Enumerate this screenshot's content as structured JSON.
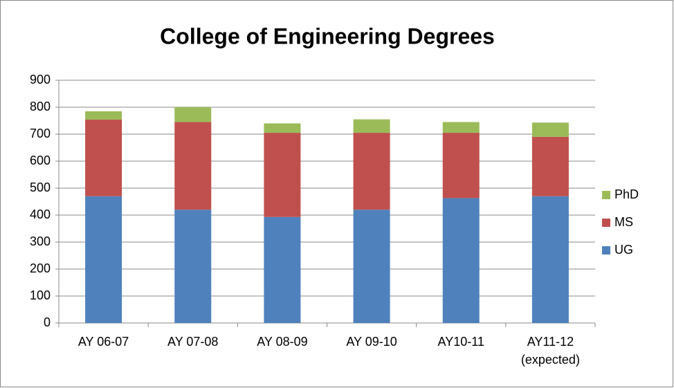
{
  "chart_data": {
    "type": "stacked_bar",
    "title": "College of Engineering Degrees",
    "categories": [
      "AY 06-07",
      "AY 07-08",
      "AY 08-09",
      "AY 09-10",
      "AY10-11",
      "AY11-12 (expected)"
    ],
    "series": [
      {
        "name": "UG",
        "color": "#4f81bd",
        "values": [
          470,
          420,
          393,
          420,
          463,
          470
        ]
      },
      {
        "name": "MS",
        "color": "#c0504d",
        "values": [
          284,
          325,
          312,
          285,
          242,
          220
        ]
      },
      {
        "name": "PhD",
        "color": "#9bbb59",
        "values": [
          31,
          55,
          35,
          50,
          40,
          53
        ]
      }
    ],
    "ylim": [
      0,
      900
    ],
    "yticks": [
      0,
      100,
      200,
      300,
      400,
      500,
      600,
      700,
      800,
      900
    ],
    "grid": true,
    "legend": "right"
  }
}
